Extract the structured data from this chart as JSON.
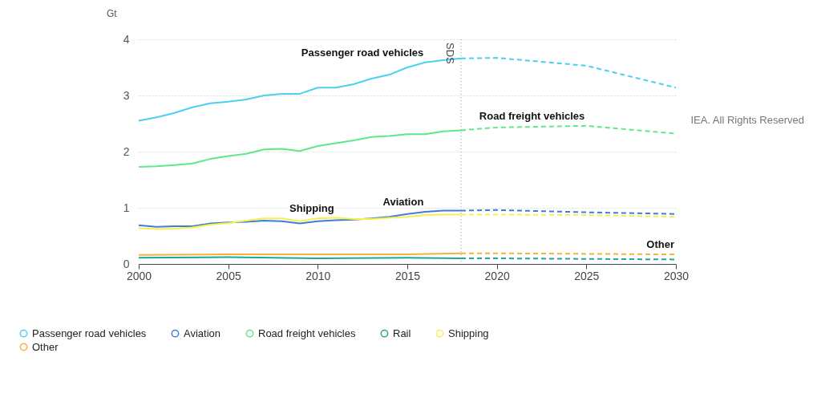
{
  "chart_data": {
    "type": "line",
    "ylabel": "Gt",
    "xlim": [
      2000,
      2030
    ],
    "xticks": [
      2000,
      2005,
      2010,
      2015,
      2020,
      2025,
      2030
    ],
    "ylim": [
      0,
      4
    ],
    "yticks": [
      0,
      1,
      2,
      3,
      4
    ],
    "grid": "y",
    "legend": "bottom",
    "marker": "none",
    "series": [
      {
        "name": "Passenger road vehicles",
        "color": "#4dd0f0",
        "line_style": "solid",
        "x": [
          2000,
          2001,
          2002,
          2003,
          2004,
          2005,
          2006,
          2007,
          2008,
          2009,
          2010,
          2011,
          2012,
          2013,
          2014,
          2015,
          2016,
          2017,
          2018
        ],
        "values": [
          2.55,
          2.61,
          2.69,
          2.79,
          2.86,
          2.89,
          2.93,
          3.0,
          3.03,
          3.03,
          3.14,
          3.14,
          3.2,
          3.3,
          3.37,
          3.5,
          3.59,
          3.63,
          3.66
        ]
      },
      {
        "name": "Aviation",
        "color": "#3f7be0",
        "line_style": "solid",
        "x": [
          2000,
          2001,
          2002,
          2003,
          2004,
          2005,
          2006,
          2007,
          2008,
          2009,
          2010,
          2011,
          2012,
          2013,
          2014,
          2015,
          2016,
          2017,
          2018
        ],
        "values": [
          0.69,
          0.66,
          0.67,
          0.67,
          0.72,
          0.74,
          0.75,
          0.77,
          0.76,
          0.72,
          0.76,
          0.78,
          0.79,
          0.81,
          0.84,
          0.89,
          0.93,
          0.95,
          0.95
        ]
      },
      {
        "name": "Road freight vehicles",
        "color": "#5ee88a",
        "line_style": "solid",
        "x": [
          2000,
          2001,
          2002,
          2003,
          2004,
          2005,
          2006,
          2007,
          2008,
          2009,
          2010,
          2011,
          2012,
          2013,
          2014,
          2015,
          2016,
          2017,
          2018
        ],
        "values": [
          1.73,
          1.74,
          1.76,
          1.79,
          1.87,
          1.92,
          1.96,
          2.04,
          2.05,
          2.01,
          2.1,
          2.15,
          2.2,
          2.26,
          2.28,
          2.31,
          2.31,
          2.36,
          2.38
        ]
      },
      {
        "name": "Rail",
        "color": "#1aa99a",
        "line_style": "solid",
        "x": [
          2000,
          2005,
          2010,
          2015,
          2018
        ],
        "values": [
          0.11,
          0.12,
          0.1,
          0.11,
          0.1
        ]
      },
      {
        "name": "Shipping",
        "color": "#f7f04a",
        "line_style": "solid",
        "x": [
          2000,
          2001,
          2002,
          2003,
          2004,
          2005,
          2006,
          2007,
          2008,
          2009,
          2010,
          2011,
          2012,
          2013,
          2014,
          2015,
          2016,
          2017,
          2018
        ],
        "values": [
          0.64,
          0.62,
          0.63,
          0.65,
          0.7,
          0.73,
          0.77,
          0.81,
          0.81,
          0.76,
          0.81,
          0.82,
          0.8,
          0.8,
          0.82,
          0.84,
          0.87,
          0.88,
          0.88
        ]
      },
      {
        "name": "Other",
        "color": "#f7b03a",
        "line_style": "solid",
        "x": [
          2000,
          2005,
          2010,
          2015,
          2018
        ],
        "values": [
          0.16,
          0.17,
          0.17,
          0.17,
          0.19
        ]
      },
      {
        "color": "#4dd0f0",
        "line_style": "dashed",
        "x": [
          2018,
          2020,
          2025,
          2030
        ],
        "values": [
          3.66,
          3.67,
          3.53,
          3.14
        ]
      },
      {
        "color": "#3f7be0",
        "line_style": "dashed",
        "x": [
          2018,
          2020,
          2025,
          2030
        ],
        "values": [
          0.95,
          0.96,
          0.92,
          0.89
        ]
      },
      {
        "color": "#5ee88a",
        "line_style": "dashed",
        "x": [
          2018,
          2020,
          2025,
          2030
        ],
        "values": [
          2.38,
          2.43,
          2.46,
          2.32
        ]
      },
      {
        "color": "#1aa99a",
        "line_style": "dashed",
        "x": [
          2018,
          2020,
          2025,
          2030
        ],
        "values": [
          0.1,
          0.1,
          0.09,
          0.08
        ]
      },
      {
        "color": "#f7f04a",
        "line_style": "dashed",
        "x": [
          2018,
          2020,
          2025,
          2030
        ],
        "values": [
          0.88,
          0.88,
          0.87,
          0.84
        ]
      },
      {
        "color": "#f7b03a",
        "line_style": "dashed",
        "x": [
          2018,
          2020,
          2025,
          2030
        ],
        "values": [
          0.19,
          0.19,
          0.18,
          0.17
        ]
      }
    ],
    "ref_lines": [
      {
        "axis": "x",
        "value": 2018,
        "label": "SDS",
        "color": "#999999",
        "line_style": "dotted"
      }
    ],
    "annotations": [
      {
        "text": "Passenger road vehicles",
        "x": 2016,
        "y": 3.59
      },
      {
        "text": "Road freight vehicles",
        "x": 2025,
        "y": 2.46
      },
      {
        "text": "Shipping",
        "x": 2011,
        "y": 0.82
      },
      {
        "text": "Aviation",
        "x": 2016,
        "y": 0.93
      },
      {
        "text": "Other",
        "x": 2030,
        "y": 0.17
      },
      "IEA. All Rights Reserved"
    ]
  }
}
